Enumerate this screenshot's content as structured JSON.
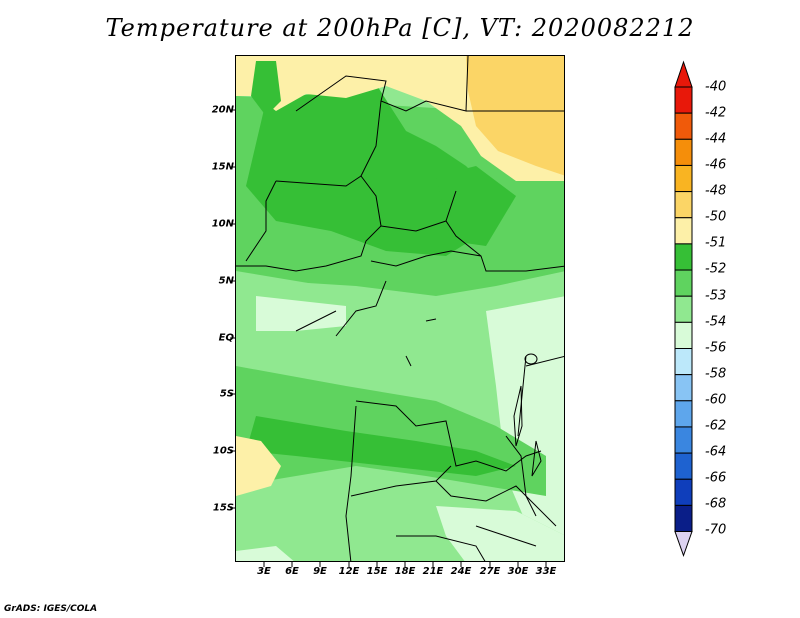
{
  "title": "Temperature at 200hPa [C], VT: 2020082212",
  "y_axis_labels": [
    "20N",
    "15N",
    "10N",
    "5N",
    "EQ",
    "5S",
    "10S",
    "15S"
  ],
  "x_axis_labels": [
    "3E",
    "6E",
    "9E",
    "12E",
    "15E",
    "18E",
    "21E",
    "24E",
    "27E",
    "30E",
    "33E"
  ],
  "colorbar": {
    "labels": [
      "-40",
      "-42",
      "-44",
      "-46",
      "-48",
      "-50",
      "-51",
      "-52",
      "-53",
      "-54",
      "-56",
      "-58",
      "-60",
      "-62",
      "-64",
      "-66",
      "-68",
      "-70"
    ],
    "colors": [
      "#e8180a",
      "#f05a0a",
      "#f58e0a",
      "#f9b422",
      "#fbd566",
      "#fdf0a8",
      "#36bf36",
      "#5fd35f",
      "#90e890",
      "#d8fbd8",
      "#bce8fa",
      "#88c4f4",
      "#5ea6ec",
      "#3a86e0",
      "#1e62d0",
      "#0f3ebb",
      "#0a1e88"
    ],
    "arrow_top_color": "#e8180a",
    "arrow_bottom_color": "#dcd2f0"
  },
  "credit": "GrADS: IGES/COLA"
}
